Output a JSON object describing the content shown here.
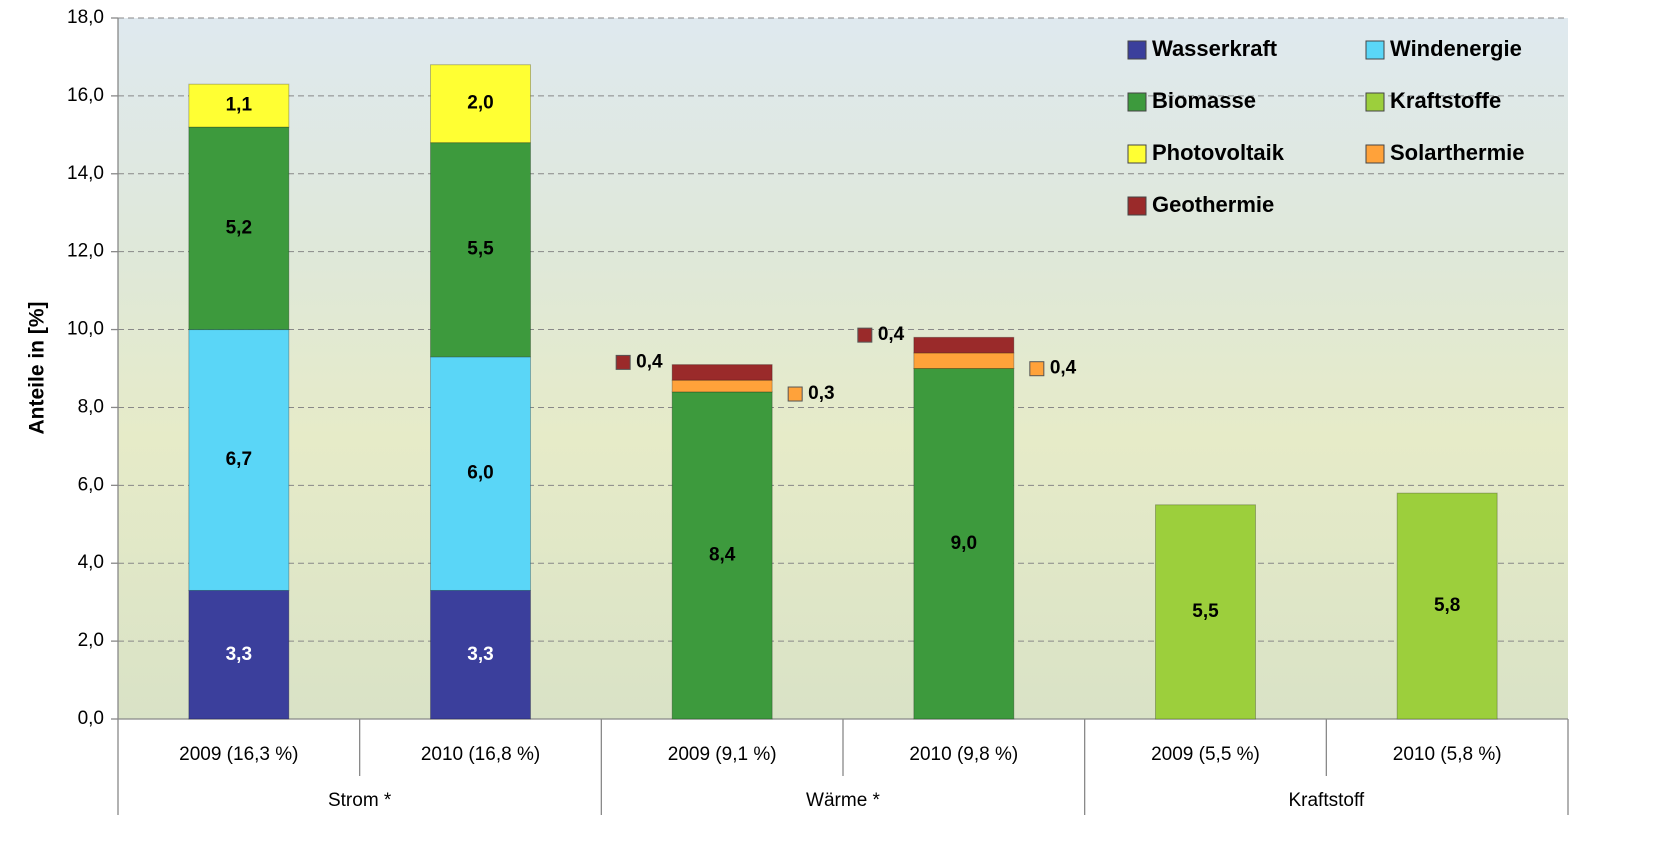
{
  "chart_data": {
    "type": "stacked-bar",
    "y_label": "Anteile in [%]",
    "categories": [
      "2009 (16,3 %)",
      "2010 (16,8 %)",
      "2009 (9,1 %)",
      "2010 (9,8 %)",
      "2009 (5,5 %)",
      "2010 (5,8 %)"
    ],
    "groups": [
      "Strom *",
      "Wärme *",
      "Kraftstoff"
    ],
    "series": [
      {
        "name": "Wasserkraft",
        "color": "#3b3f9c",
        "values": [
          3.3,
          3.3,
          null,
          null,
          null,
          null
        ],
        "value_labels": [
          "3,3",
          "3,3",
          null,
          null,
          null,
          null
        ]
      },
      {
        "name": "Windenergie",
        "color": "#5ad6f7",
        "values": [
          6.7,
          6.0,
          null,
          null,
          null,
          null
        ],
        "value_labels": [
          "6,7",
          "6,0",
          null,
          null,
          null,
          null
        ]
      },
      {
        "name": "Biomasse",
        "color": "#3d9a3d",
        "values": [
          5.2,
          5.5,
          8.4,
          9.0,
          null,
          null
        ],
        "value_labels": [
          "5,2",
          "5,5",
          "8,4",
          "9,0",
          null,
          null
        ]
      },
      {
        "name": "Kraftstoffe",
        "color": "#9ccf3c",
        "values": [
          null,
          null,
          null,
          null,
          5.5,
          5.8
        ],
        "value_labels": [
          null,
          null,
          null,
          null,
          "5,5",
          "5,8"
        ]
      },
      {
        "name": "Photovoltaik",
        "color": "#ffff33",
        "values": [
          1.1,
          2.0,
          null,
          null,
          null,
          null
        ],
        "value_labels": [
          "1,1",
          "2,0",
          null,
          null,
          null,
          null
        ]
      },
      {
        "name": "Solarthermie",
        "color": "#ffa23a",
        "values": [
          null,
          null,
          0.3,
          0.4,
          null,
          null
        ],
        "value_labels": [
          null,
          null,
          "0,3",
          "0,4",
          null,
          null
        ]
      },
      {
        "name": "Geothermie",
        "color": "#9a2a2a",
        "values": [
          null,
          null,
          0.4,
          0.4,
          null,
          null
        ],
        "value_labels": [
          null,
          null,
          "0,4",
          "0,4",
          null,
          null
        ]
      }
    ],
    "ylim": [
      0,
      18
    ],
    "yticks": [
      {
        "value": 0,
        "label": "0,0"
      },
      {
        "value": 2,
        "label": "2,0"
      },
      {
        "value": 4,
        "label": "4,0"
      },
      {
        "value": 6,
        "label": "6,0"
      },
      {
        "value": 8,
        "label": "8,0"
      },
      {
        "value": 10,
        "label": "10,0"
      },
      {
        "value": 12,
        "label": "12,0"
      },
      {
        "value": 14,
        "label": "14,0"
      },
      {
        "value": 16,
        "label": "16,0"
      },
      {
        "value": 18,
        "label": "18,0"
      }
    ],
    "grid": true,
    "legend": "top-right"
  }
}
